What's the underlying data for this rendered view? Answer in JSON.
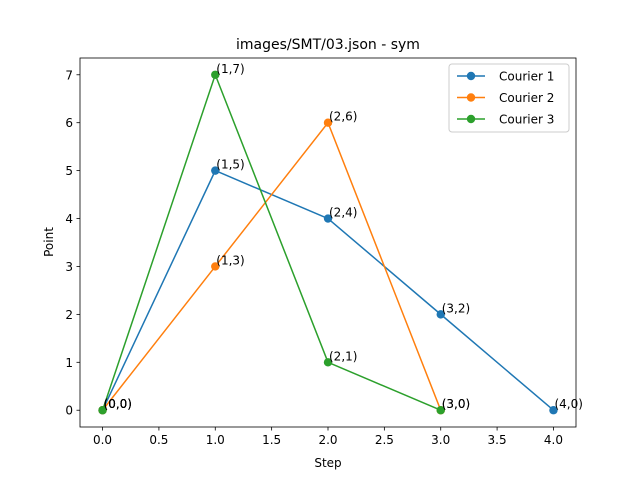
{
  "chart_data": {
    "type": "line",
    "title": "images/SMT/03.json - sym",
    "xlabel": "Step",
    "ylabel": "Point",
    "xlim": [
      -0.2,
      4.2
    ],
    "ylim": [
      -0.35,
      7.35
    ],
    "xticks": [
      0.0,
      0.5,
      1.0,
      1.5,
      2.0,
      2.5,
      3.0,
      3.5,
      4.0
    ],
    "xtick_labels": [
      "0.0",
      "0.5",
      "1.0",
      "1.5",
      "2.0",
      "2.5",
      "3.0",
      "3.5",
      "4.0"
    ],
    "yticks": [
      0,
      1,
      2,
      3,
      4,
      5,
      6,
      7
    ],
    "ytick_labels": [
      "0",
      "1",
      "2",
      "3",
      "4",
      "5",
      "6",
      "7"
    ],
    "grid": false,
    "legend_position": "upper right",
    "series": [
      {
        "name": "Courier 1",
        "color": "#1f77b4",
        "x": [
          0,
          1,
          2,
          3,
          4
        ],
        "y": [
          0,
          5,
          4,
          2,
          0
        ],
        "labels": [
          "(0,0)",
          "(1,5)",
          "(2,4)",
          "(3,2)",
          "(4,0)"
        ]
      },
      {
        "name": "Courier 2",
        "color": "#ff7f0e",
        "x": [
          0,
          1,
          2,
          3
        ],
        "y": [
          0,
          3,
          6,
          0
        ],
        "labels": [
          "(0,0)",
          "(1,3)",
          "(2,6)",
          "(3,0)"
        ]
      },
      {
        "name": "Courier 3",
        "color": "#2ca02c",
        "x": [
          0,
          1,
          2,
          3
        ],
        "y": [
          0,
          7,
          1,
          0
        ],
        "labels": [
          "(0,0)",
          "(1,7)",
          "(2,1)",
          "(3,0)"
        ]
      }
    ]
  }
}
